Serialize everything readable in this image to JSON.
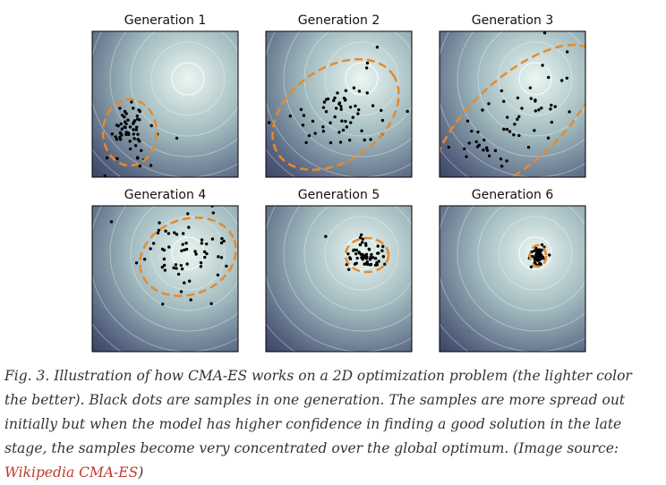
{
  "figure": {
    "panels": [
      {
        "title": "Generation 1"
      },
      {
        "title": "Generation 2"
      },
      {
        "title": "Generation 3"
      },
      {
        "title": "Generation 4"
      },
      {
        "title": "Generation 5"
      },
      {
        "title": "Generation 6"
      }
    ]
  },
  "caption": {
    "text": "Fig. 3. Illustration of how CMA-ES works on a 2D optimization problem (the lighter color the better). Black dots are samples in one generation. The samples are more spread out initially but when the model has higher confidence in finding a good solution in the late stage, the samples become very concentrated over the global optimum. (Image source: ",
    "link": "Wikipedia CMA-ES",
    "end": ")"
  }
}
